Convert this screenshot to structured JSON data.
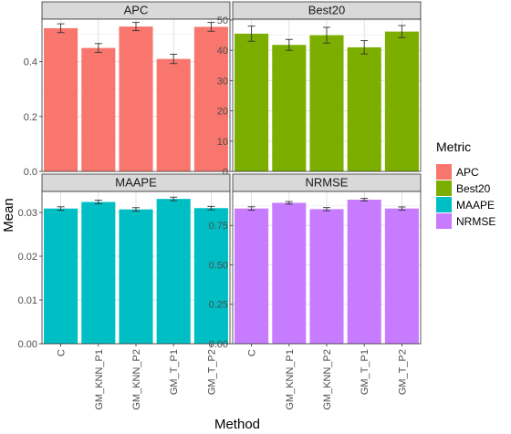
{
  "chart_data": {
    "type": "bar",
    "xlabel": "Method",
    "ylabel": "Mean",
    "categories": [
      "C",
      "GM_KNN_P1",
      "GM_KNN_P2",
      "GM_T_P1",
      "GM_T_P2"
    ],
    "legend": {
      "title": "Metric",
      "placement": "right",
      "entries": [
        {
          "name": "APC",
          "color": "#F8766D"
        },
        {
          "name": "Best20",
          "color": "#7CAE00"
        },
        {
          "name": "MAAPE",
          "color": "#00BFC4"
        },
        {
          "name": "NRMSE",
          "color": "#C77CFF"
        }
      ]
    },
    "grid": true,
    "facets": [
      {
        "name": "APC",
        "color": "#F8766D",
        "values": [
          0.522,
          0.45,
          0.528,
          0.41,
          0.527
        ],
        "errors": [
          0.016,
          0.016,
          0.015,
          0.017,
          0.016
        ],
        "ylim": [
          0,
          0.555
        ],
        "yticks": [
          0.0,
          0.2,
          0.4
        ],
        "ytick_labels": [
          "0.0",
          "0.2",
          "0.4"
        ]
      },
      {
        "name": "Best20",
        "color": "#7CAE00",
        "values": [
          45.5,
          41.8,
          45.0,
          41.0,
          46.2
        ],
        "errors": [
          2.5,
          1.8,
          2.6,
          2.2,
          2.0
        ],
        "ylim": [
          0,
          50.3
        ],
        "yticks": [
          0,
          10,
          20,
          30,
          40,
          50
        ],
        "ytick_labels": [
          "0",
          "10",
          "20",
          "30",
          "40",
          "50"
        ]
      },
      {
        "name": "MAAPE",
        "color": "#00BFC4",
        "values": [
          0.0309,
          0.0324,
          0.0307,
          0.0331,
          0.031
        ],
        "errors": [
          0.0004,
          0.0004,
          0.0004,
          0.0004,
          0.0004
        ],
        "ylim": [
          0,
          0.0348
        ],
        "yticks": [
          0.0,
          0.01,
          0.02,
          0.03
        ],
        "ytick_labels": [
          "0.00",
          "0.01",
          "0.02",
          "0.03"
        ]
      },
      {
        "name": "NRMSE",
        "color": "#C77CFF",
        "values": [
          0.857,
          0.893,
          0.853,
          0.913,
          0.857
        ],
        "errors": [
          0.011,
          0.008,
          0.01,
          0.008,
          0.01
        ],
        "ylim": [
          0,
          0.965
        ],
        "yticks": [
          0.0,
          0.25,
          0.5,
          0.75
        ],
        "ytick_labels": [
          "0.00",
          "0.25",
          "0.50",
          "0.75"
        ]
      }
    ]
  }
}
